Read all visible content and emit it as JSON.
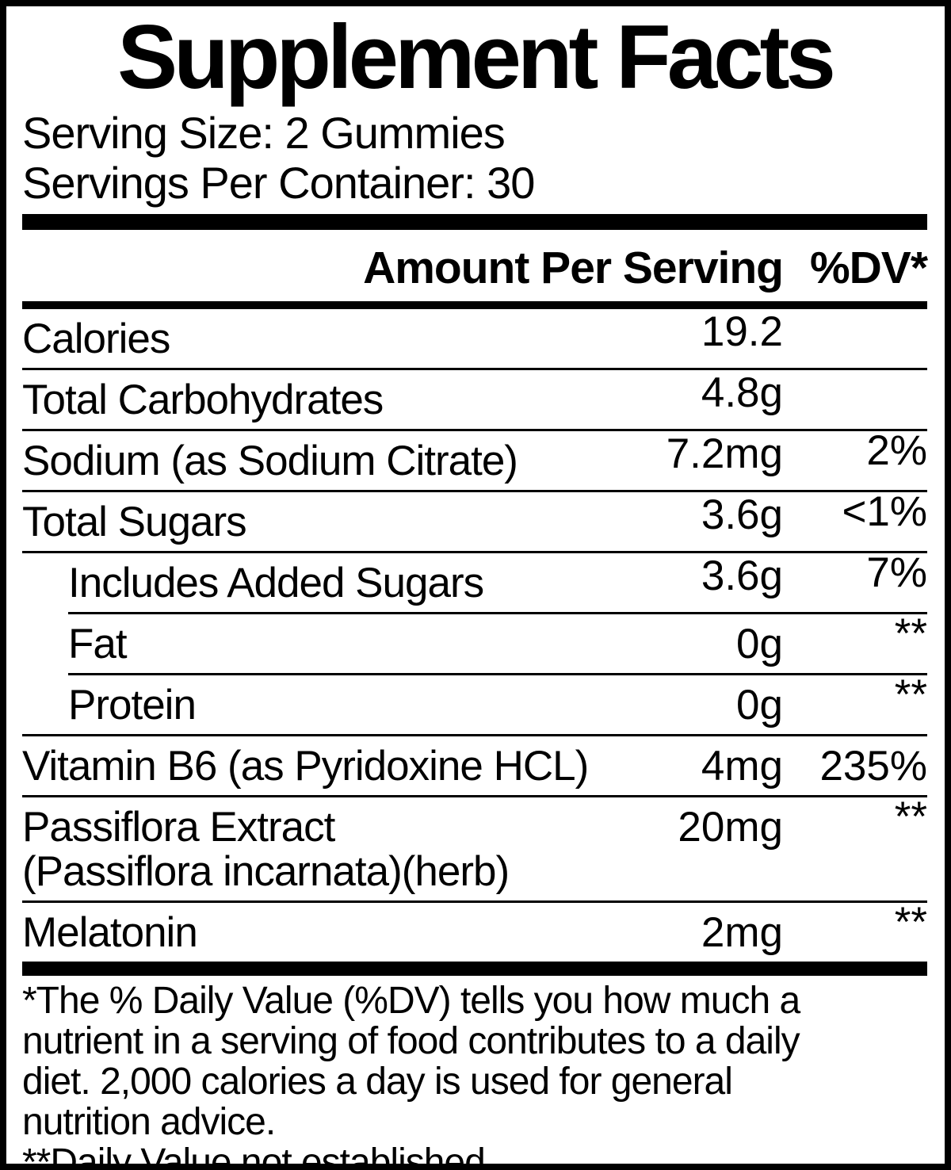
{
  "title": "Supplement Facts",
  "serving": {
    "size": "Serving Size: 2 Gummies",
    "per_container": "Servings Per Container: 30"
  },
  "header": {
    "amount_label": "Amount Per Serving",
    "dv_label": "%DV*"
  },
  "table": {
    "rows": [
      {
        "label": "Calories",
        "amount": "19.2",
        "dv": "",
        "indent": false,
        "sep_above": "medium",
        "amount_raised": true,
        "dv_raised": false
      },
      {
        "label": "Total Carbohydrates",
        "amount": "4.8g",
        "dv": "",
        "indent": false,
        "sep_above": "thin",
        "amount_raised": true,
        "dv_raised": false
      },
      {
        "label": "Sodium (as Sodium Citrate)",
        "amount": "7.2mg",
        "dv": "2%",
        "indent": false,
        "sep_above": "thin",
        "amount_raised": true,
        "dv_raised": true
      },
      {
        "label": "Total Sugars",
        "amount": "3.6g",
        "dv": "<1%",
        "indent": false,
        "sep_above": "thin",
        "amount_raised": true,
        "dv_raised": true
      },
      {
        "label": "Includes Added Sugars",
        "amount": "3.6g",
        "dv": "7%",
        "indent": true,
        "sep_above": "thin",
        "amount_raised": true,
        "dv_raised": true
      },
      {
        "label": "Fat",
        "amount": "0g",
        "dv": "**",
        "indent": true,
        "sep_above": "thin-indent",
        "amount_raised": false,
        "dv_raised": true
      },
      {
        "label": "Protein",
        "amount": "0g",
        "dv": "**",
        "indent": true,
        "sep_above": "thin-indent",
        "amount_raised": false,
        "dv_raised": true
      },
      {
        "label": "Vitamin B6 (as Pyridoxine HCL)",
        "amount": "4mg",
        "dv": "235%",
        "indent": false,
        "sep_above": "thin",
        "amount_raised": false,
        "dv_raised": false
      },
      {
        "label": "Passiflora Extract",
        "label2": "(Passiflora incarnata)(herb)",
        "amount": "20mg",
        "dv": "**",
        "indent": false,
        "sep_above": "thin",
        "amount_raised": false,
        "dv_raised": true
      },
      {
        "label": "Melatonin",
        "amount": "2mg",
        "dv": "**",
        "indent": false,
        "sep_above": "thin",
        "amount_raised": false,
        "dv_raised": true
      }
    ]
  },
  "footnote": {
    "para1_lines": [
      "*The % Daily Value (%DV) tells you how much a",
      "nutrient in a serving of food contributes to a daily",
      "diet. 2,000 calories a day is used for general",
      "nutrition advice."
    ],
    "para2_lines": [
      "**Daily Value not established."
    ]
  },
  "colors": {
    "ink": "#000000",
    "background": "#ffffff"
  }
}
